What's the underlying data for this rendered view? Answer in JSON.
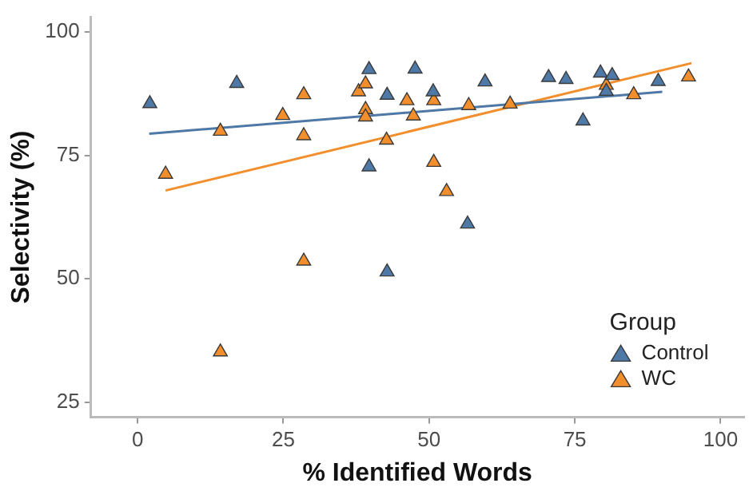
{
  "chart_data": {
    "type": "scatter",
    "xlabel": "% Identified Words",
    "ylabel": "Selectivity (%)",
    "legend_title": "Group",
    "legend": "bottom right",
    "marker": "triangle",
    "grid": false,
    "xlim": [
      -8,
      104
    ],
    "xticks": [
      0,
      25,
      50,
      75,
      100
    ],
    "ylim": [
      22,
      103
    ],
    "yticks": [
      25,
      50,
      75,
      100
    ],
    "series": [
      {
        "name": "Control",
        "color": "#4e79a7",
        "x": [
          2.1,
          17,
          39.7,
          39.7,
          42.8,
          42.8,
          47.6,
          50.7,
          56.6,
          59.6,
          70.5,
          73.5,
          76.4,
          79.4,
          80.4,
          81.4,
          89.3
        ],
        "values": [
          85.5,
          89.6,
          92.4,
          72.7,
          87.2,
          51.4,
          92.5,
          87.9,
          61.1,
          89.9,
          90.8,
          90.4,
          82.0,
          91.7,
          88.0,
          91.2,
          90.0
        ]
      },
      {
        "name": "WC",
        "color": "#f28e2b",
        "x": [
          4.8,
          14.2,
          14.2,
          24.9,
          28.5,
          28.5,
          28.5,
          37.9,
          39.1,
          39.1,
          39.1,
          42.7,
          46.2,
          47.3,
          50.8,
          50.8,
          53,
          56.8,
          63.9,
          80.4,
          85.1,
          94.5
        ],
        "values": [
          71.2,
          79.9,
          35.2,
          83.1,
          87.3,
          79,
          53.6,
          87.9,
          89.5,
          84.3,
          82.8,
          78.1,
          86.1,
          83,
          86.1,
          73.6,
          67.7,
          85.1,
          85.4,
          89.2,
          87.3,
          90.9
        ]
      },
      {
        "type": "line",
        "color": "#4e79a7",
        "marker": "none",
        "x": [
          2,
          90
        ],
        "values": [
          79.4,
          87.9
        ]
      },
      {
        "type": "line",
        "color": "#f28e2b",
        "marker": "none",
        "x": [
          4.8,
          95
        ],
        "values": [
          67.9,
          93.7
        ]
      }
    ]
  }
}
